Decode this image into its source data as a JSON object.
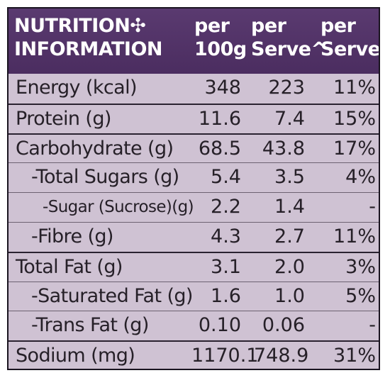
{
  "header": {
    "title_line1": "NUTRITION✣",
    "title_line2": "INFORMATION",
    "col1_line1": "per",
    "col1_line2": "100g",
    "col2_line1": "per",
    "col2_line2": "Serve^",
    "col3_line1": "per",
    "col3_line2": "Serve"
  },
  "rows": [
    {
      "name": "Energy (kcal)",
      "per100g": "348",
      "perServe": "223",
      "pct": "11%",
      "indent": 0
    },
    {
      "name": "Protein (g)",
      "per100g": "11.6",
      "perServe": "7.4",
      "pct": "15%",
      "indent": 0
    },
    {
      "name": "Carbohydrate (g)",
      "per100g": "68.5",
      "perServe": "43.8",
      "pct": "17%",
      "indent": 0
    },
    {
      "name": "-Total Sugars (g)",
      "per100g": "5.4",
      "perServe": "3.5",
      "pct": "4%",
      "indent": 1
    },
    {
      "name": "-Sugar (Sucrose)(g)",
      "per100g": "2.2",
      "perServe": "1.4",
      "pct": "-",
      "indent": 2
    },
    {
      "name": "-Fibre (g)",
      "per100g": "4.3",
      "perServe": "2.7",
      "pct": "11%",
      "indent": 1
    },
    {
      "name": "Total Fat (g)",
      "per100g": "3.1",
      "perServe": "2.0",
      "pct": "3%",
      "indent": 0
    },
    {
      "name": "-Saturated Fat (g)",
      "per100g": "1.6",
      "perServe": "1.0",
      "pct": "5%",
      "indent": 1
    },
    {
      "name": "-Trans Fat (g)",
      "per100g": "0.10",
      "perServe": "0.06",
      "pct": "-",
      "indent": 1
    },
    {
      "name": "Sodium (mg)",
      "per100g": "1170.1",
      "perServe": "748.9",
      "pct": "31%",
      "indent": 0
    }
  ]
}
